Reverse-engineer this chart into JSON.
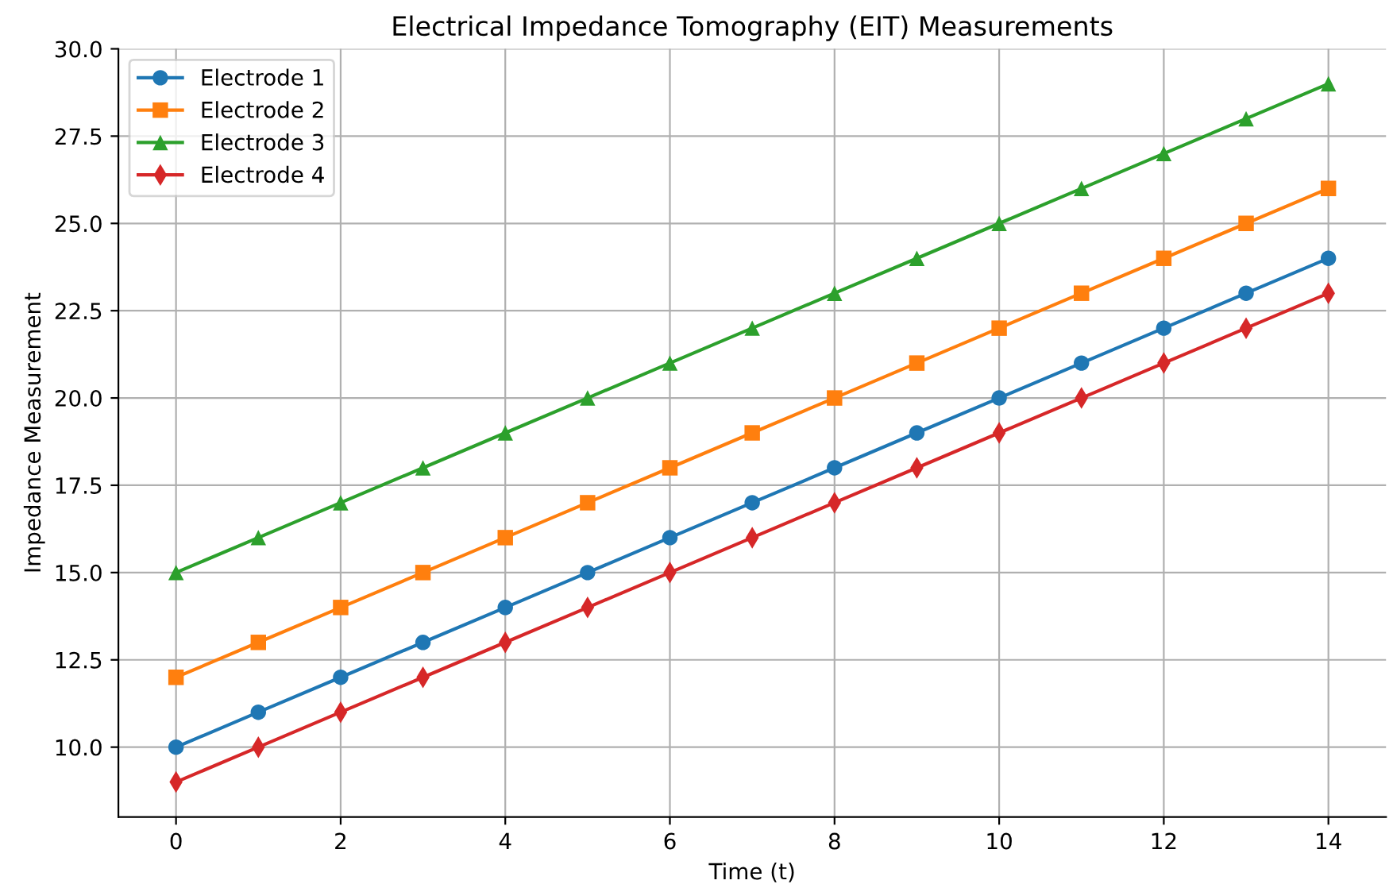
{
  "chart_data": {
    "type": "line",
    "title": "Electrical Impedance Tomography (EIT) Measurements",
    "xlabel": "Time (t)",
    "ylabel": "Impedance Measurement",
    "x": [
      0,
      1,
      2,
      3,
      4,
      5,
      6,
      7,
      8,
      9,
      10,
      11,
      12,
      13,
      14
    ],
    "series": [
      {
        "name": "Electrode 1",
        "color": "#1f77b4",
        "marker": "circle",
        "values": [
          10,
          11,
          12,
          13,
          14,
          15,
          16,
          17,
          18,
          19,
          20,
          21,
          22,
          23,
          24
        ]
      },
      {
        "name": "Electrode 2",
        "color": "#ff7f0e",
        "marker": "square",
        "values": [
          12,
          13,
          14,
          15,
          16,
          17,
          18,
          19,
          20,
          21,
          22,
          23,
          24,
          25,
          26
        ]
      },
      {
        "name": "Electrode 3",
        "color": "#2ca02c",
        "marker": "triangle",
        "values": [
          15,
          16,
          17,
          18,
          19,
          20,
          21,
          22,
          23,
          24,
          25,
          26,
          27,
          28,
          29
        ]
      },
      {
        "name": "Electrode 4",
        "color": "#d62728",
        "marker": "diamond",
        "values": [
          9,
          10,
          11,
          12,
          13,
          14,
          15,
          16,
          17,
          18,
          19,
          20,
          21,
          22,
          23
        ]
      }
    ],
    "xlim": [
      -0.7,
      14.7
    ],
    "ylim": [
      8,
      30
    ],
    "xticks": [
      0,
      2,
      4,
      6,
      8,
      10,
      12,
      14
    ],
    "yticks": [
      {
        "value": 10,
        "label": "10.0"
      },
      {
        "value": 12.5,
        "label": "12.5"
      },
      {
        "value": 15,
        "label": "15.0"
      },
      {
        "value": 17.5,
        "label": "17.5"
      },
      {
        "value": 20,
        "label": "20.0"
      },
      {
        "value": 22.5,
        "label": "22.5"
      },
      {
        "value": 25,
        "label": "25.0"
      },
      {
        "value": 27.5,
        "label": "27.5"
      },
      {
        "value": 30,
        "label": "30.0"
      }
    ],
    "grid": true,
    "legend": "top left",
    "line_style": "solid"
  }
}
